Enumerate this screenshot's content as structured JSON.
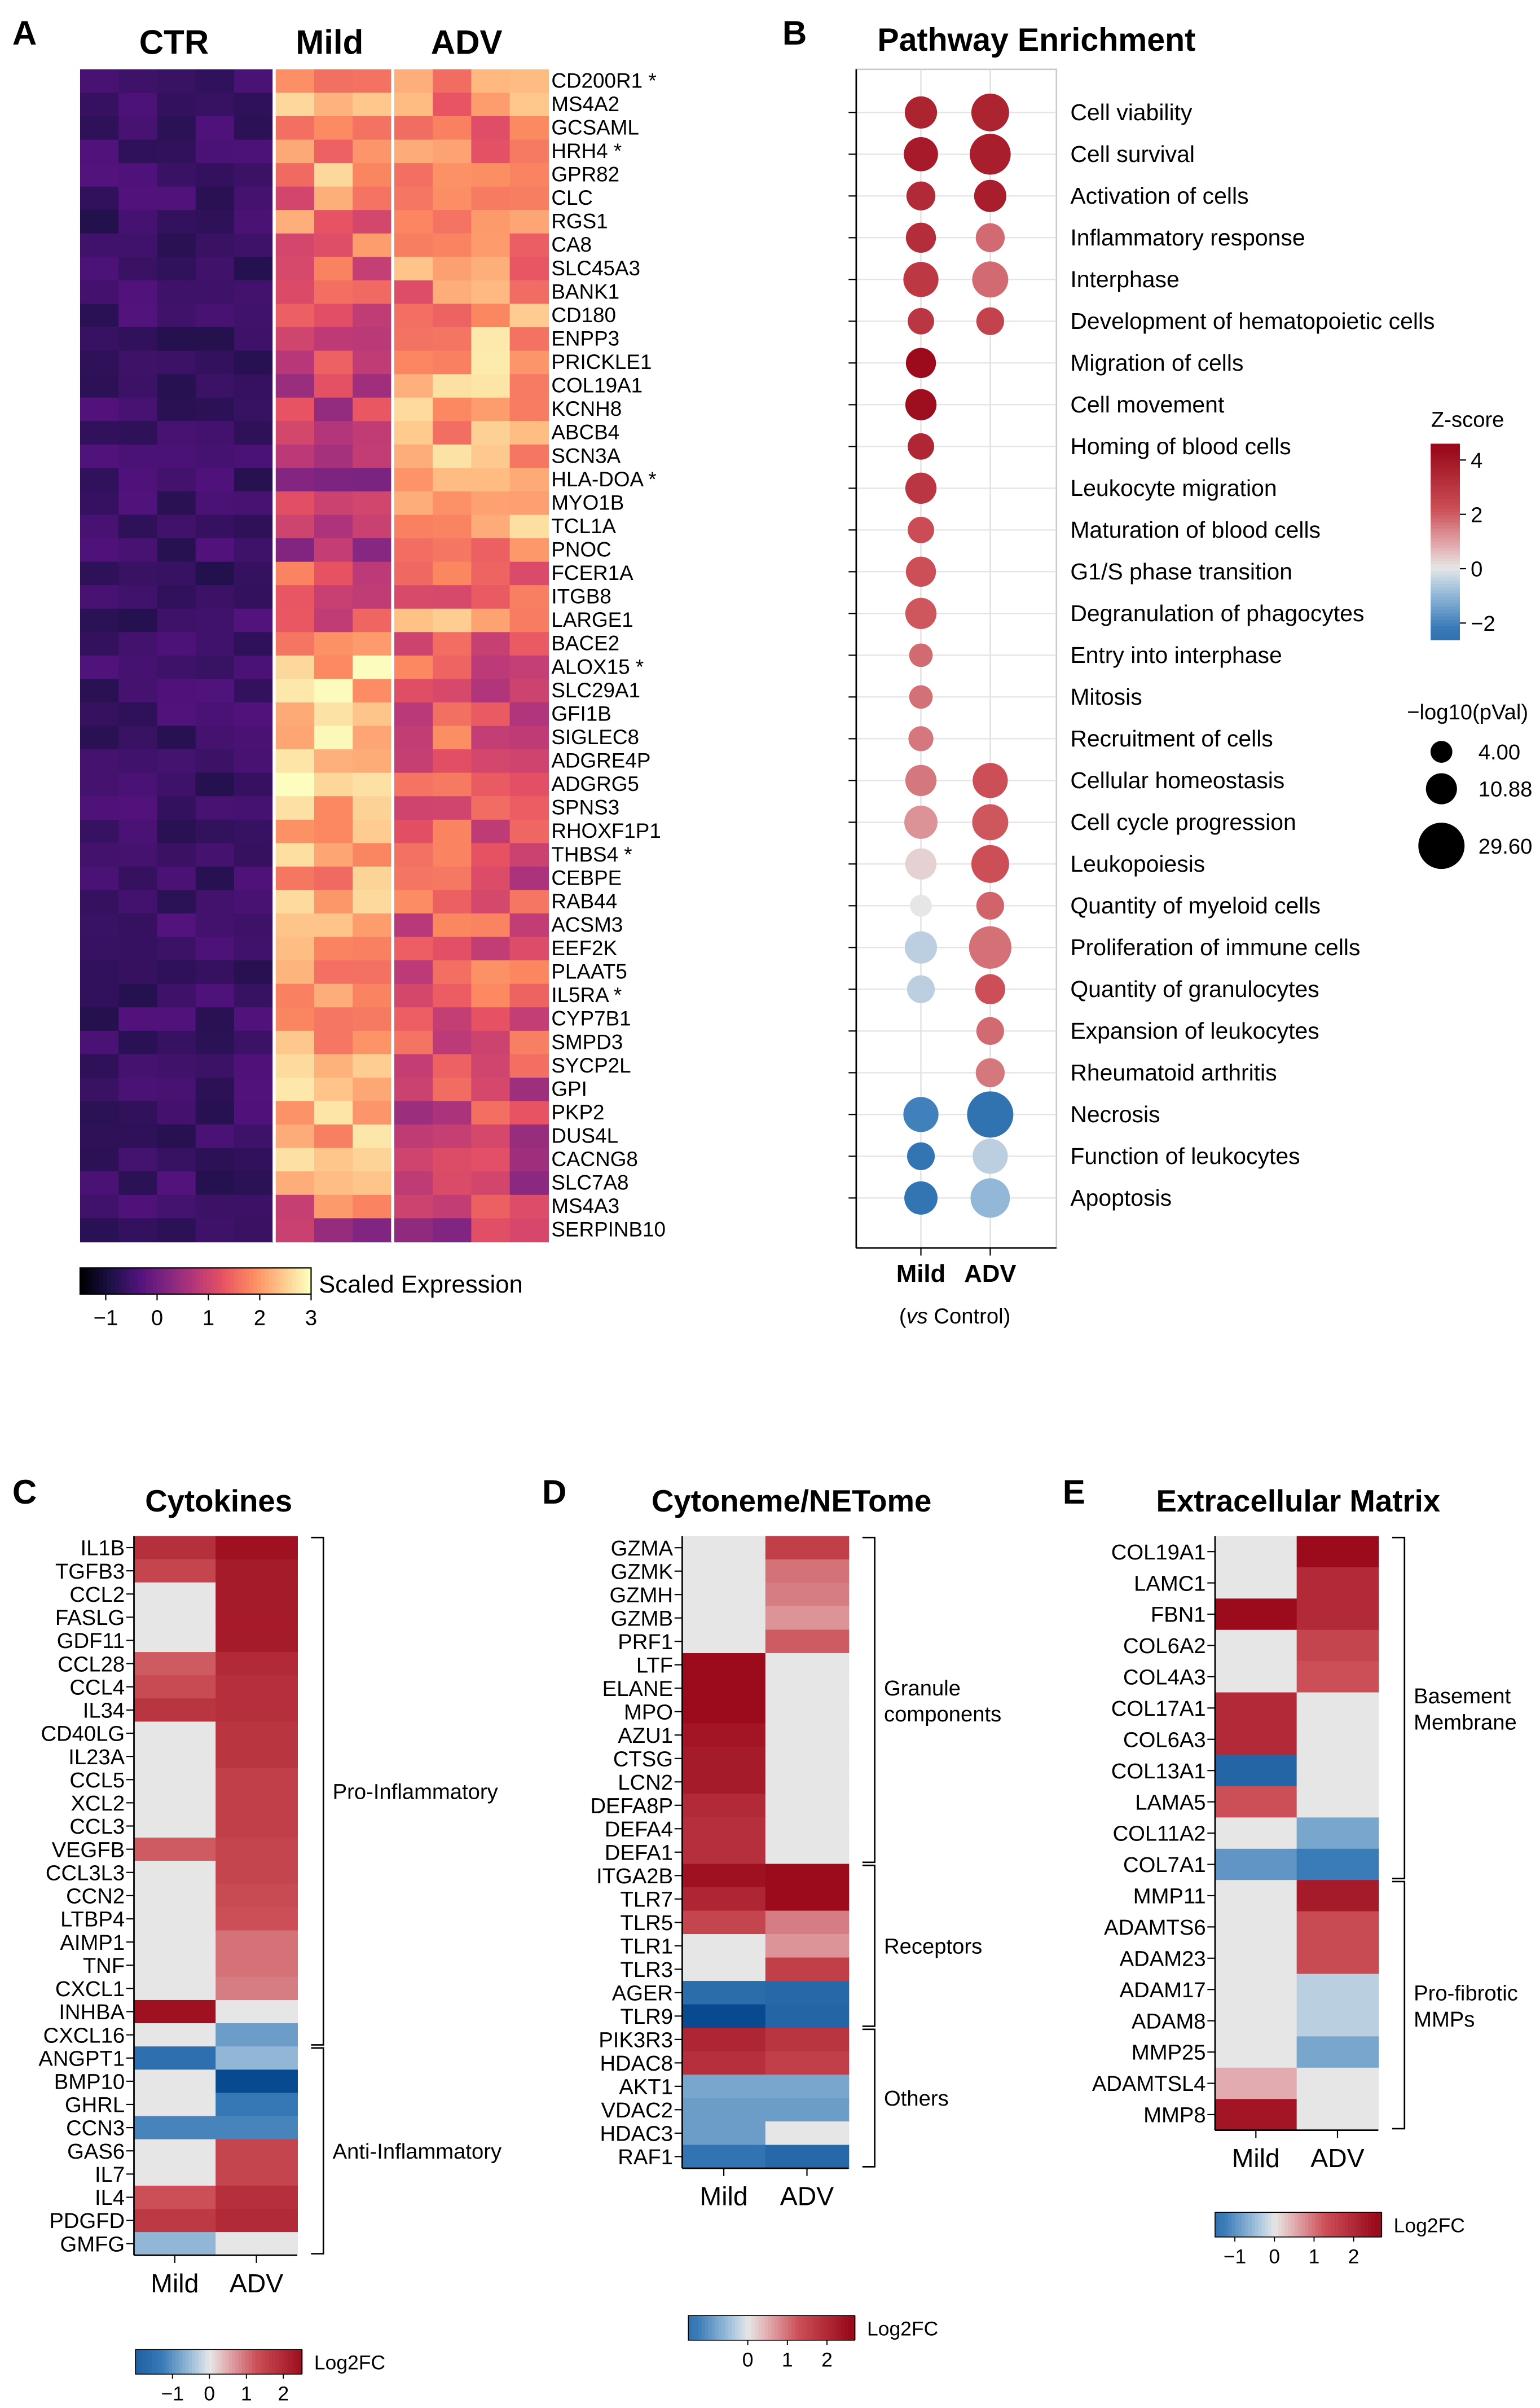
{
  "panel_letters": {
    "a": "A",
    "b": "B",
    "c": "C",
    "d": "D",
    "e": "E"
  },
  "colors": {
    "sat_red": "#9b0b1c",
    "sat_blue": "#084a8f",
    "neutral": "#e6e6e6",
    "heat_low": "#000004",
    "heat_high": "#fcfdbf"
  },
  "chart_data": [
    {
      "type": "heatmap",
      "panel": "A",
      "title": "",
      "group_labels": [
        "CTR",
        "Mild",
        "ADV"
      ],
      "group_sizes": [
        5,
        3,
        4
      ],
      "genes": [
        "CD200R1 *",
        "MS4A2",
        "GCSAML",
        "HRH4 *",
        "GPR82",
        "CLC",
        "RGS1",
        "CA8",
        "SLC45A3",
        "BANK1",
        "CD180",
        "ENPP3",
        "PRICKLE1",
        "COL19A1",
        "KCNH8",
        "ABCB4",
        "SCN3A",
        "HLA-DOA *",
        "MYO1B",
        "TCL1A",
        "PNOC",
        "FCER1A",
        "ITGB8",
        "LARGE1",
        "BACE2",
        "ALOX15 *",
        "SLC29A1",
        "GFI1B",
        "SIGLEC8",
        "ADGRE4P",
        "ADGRG5",
        "SPNS3",
        "RHOXF1P1",
        "THBS4 *",
        "CEBPE",
        "RAB44",
        "ACSM3",
        "EEF2K",
        "PLAAT5",
        "IL5RA *",
        "CYP7B1",
        "SMPD3",
        "SYCP2L",
        "GPI",
        "PKP2",
        "DUS4L",
        "CACNG8",
        "SLC7A8",
        "MS4A3",
        "SERPINB10"
      ],
      "values_mild_mean": [
        1.6,
        2.0,
        1.8,
        2.0,
        2.1,
        1.6,
        1.6,
        1.5,
        1.3,
        1.0,
        1.1,
        1.0,
        0.9,
        0.9,
        0.9,
        0.7,
        0.7,
        0.7,
        0.6,
        0.6,
        0.6,
        1.2,
        1.4,
        1.4,
        2.0,
        2.4,
        2.4,
        2.5,
        2.4,
        2.4,
        2.5,
        2.4,
        2.3,
        2.4,
        2.0,
        2.2,
        2.1,
        2.2,
        2.1,
        2.2,
        2.2,
        2.2,
        2.2,
        2.3,
        2.1,
        2.2,
        2.1,
        2.0,
        1.5,
        0.8
      ],
      "values_adv_mean": [
        2.2,
        1.9,
        1.7,
        1.8,
        1.8,
        1.8,
        1.8,
        1.6,
        1.9,
        1.8,
        2.0,
        2.2,
        2.2,
        2.2,
        2.1,
        2.2,
        2.2,
        2.3,
        2.1,
        2.1,
        2.0,
        1.6,
        1.4,
        2.0,
        1.3,
        1.3,
        1.2,
        1.2,
        1.3,
        1.3,
        1.2,
        1.2,
        1.2,
        1.2,
        1.2,
        1.3,
        1.3,
        1.3,
        1.3,
        1.3,
        1.2,
        1.2,
        1.1,
        1.1,
        1.1,
        0.8,
        0.9,
        0.8,
        0.8,
        0.6
      ],
      "values_ctr_mean": -0.6,
      "colorbar": {
        "label": "Scaled Expression",
        "ticks": [
          "−1",
          "0",
          "1",
          "2",
          "3"
        ],
        "range": [
          -1.5,
          3
        ]
      }
    },
    {
      "type": "dot",
      "panel": "B",
      "title": "Pathway Enrichment",
      "x_categories": [
        "Mild",
        "ADV"
      ],
      "x_subtitle_italic": "vs",
      "x_subtitle_rest": " Control)",
      "x_subtitle_open": "(",
      "pathways": [
        "Cell viability",
        "Cell survival",
        "Activation of cells",
        "Inflammatory response",
        "Interphase",
        "Development of hematopoietic cells",
        "Migration of cells",
        "Cell movement",
        "Homing of blood cells",
        "Leukocyte migration",
        "Maturation of blood cells",
        "G1/S phase transition",
        "Degranulation of phagocytes",
        "Entry into interphase",
        "Mitosis",
        "Recruitment of cells",
        "Cellular homeostasis",
        "Cell cycle progression",
        "Leukopoiesis",
        "Quantity of myeloid cells",
        "Proliferation of immune cells",
        "Quantity of granulocytes",
        "Expansion of leukocytes",
        "Rheumatoid arthritis",
        "Necrosis",
        "Function of leukocytes",
        "Apoptosis"
      ],
      "mild_z": [
        3.6,
        3.9,
        3.4,
        3.3,
        2.9,
        3.0,
        4.4,
        4.3,
        3.5,
        3.0,
        2.3,
        2.2,
        2.1,
        1.8,
        1.7,
        1.6,
        1.6,
        1.2,
        0.3,
        0.0,
        -0.5,
        -0.5,
        null,
        null,
        -2.1,
        -2.5,
        -2.5
      ],
      "mild_p": [
        12,
        14,
        9,
        10,
        15,
        7,
        10,
        11,
        7,
        11,
        7,
        10,
        11,
        5,
        5,
        6,
        11,
        13,
        11,
        4,
        12,
        8,
        null,
        null,
        15,
        8,
        13
      ],
      "adv_z": [
        3.6,
        3.8,
        3.8,
        1.8,
        1.8,
        2.6,
        null,
        null,
        null,
        null,
        null,
        null,
        null,
        null,
        null,
        null,
        2.2,
        2.1,
        2.2,
        1.9,
        1.7,
        2.2,
        1.8,
        1.6,
        -2.6,
        -0.5,
        -1.0
      ],
      "adv_p": [
        18,
        22,
        12,
        9,
        16,
        8,
        null,
        null,
        null,
        null,
        null,
        null,
        null,
        null,
        null,
        null,
        15,
        16,
        18,
        8,
        24,
        10,
        8,
        9,
        29.6,
        15,
        20
      ],
      "legend_z": {
        "title": "Z-score",
        "ticks": [
          "4",
          "2",
          "0",
          "−2"
        ]
      },
      "legend_size": {
        "title": "−log10(pVal)",
        "entries": [
          "4.00",
          "10.88",
          "29.60"
        ]
      }
    },
    {
      "type": "heatmap",
      "panel": "C",
      "title": "Cytokines",
      "columns": [
        "Mild",
        "ADV"
      ],
      "rows": [
        "IL1B",
        "TGFB3",
        "CCL2",
        "FASLG",
        "GDF11",
        "CCL28",
        "CCL4",
        "IL34",
        "CD40LG",
        "IL23A",
        "CCL5",
        "XCL2",
        "CCL3",
        "VEGFB",
        "CCL3L3",
        "CCN2",
        "LTBP4",
        "AIMP1",
        "TNF",
        "CXCL1",
        "INHBA",
        "CXCL16",
        "ANGPT1",
        "BMP10",
        "GHRL",
        "CCN3",
        "GAS6",
        "IL7",
        "IL4",
        "PDGFD",
        "GMFG"
      ],
      "mild": [
        1.9,
        1.5,
        0,
        0,
        0,
        1.2,
        1.4,
        1.8,
        0,
        0,
        0,
        0,
        0,
        1.2,
        0,
        0,
        0,
        0,
        0,
        0,
        2.5,
        0,
        -1.6,
        0,
        0,
        -1.2,
        0,
        0,
        1.3,
        1.7,
        -0.6
      ],
      "adv": [
        2.5,
        2.3,
        2.3,
        2.3,
        2.3,
        2.0,
        1.9,
        1.9,
        1.8,
        1.8,
        1.6,
        1.6,
        1.6,
        1.5,
        1.5,
        1.4,
        1.3,
        1.0,
        1.0,
        0.9,
        0,
        -0.9,
        -0.6,
        -2.6,
        -1.4,
        -1.2,
        1.5,
        1.5,
        1.9,
        2.0,
        0
      ],
      "groups": [
        {
          "label": "Pro-Inflammatory",
          "start": 0,
          "end": 21
        },
        {
          "label": "Anti-Inflammatory",
          "start": 22,
          "end": 30
        }
      ],
      "colorbar": {
        "label": "Log2FC",
        "ticks": [
          "−1",
          "0",
          "1",
          "2"
        ],
        "range": [
          -2,
          2.5
        ]
      }
    },
    {
      "type": "heatmap",
      "panel": "D",
      "title": "Cytoneme/NETome",
      "columns": [
        "Mild",
        "ADV"
      ],
      "rows": [
        "GZMA",
        "GZMK",
        "GZMH",
        "GZMB",
        "PRF1",
        "LTF",
        "ELANE",
        "MPO",
        "AZU1",
        "CTSG",
        "LCN2",
        "DEFA8P",
        "DEFA4",
        "DEFA1",
        "ITGA2B",
        "TLR7",
        "TLR5",
        "TLR1",
        "TLR3",
        "AGER",
        "TLR9",
        "PIK3R3",
        "HDAC8",
        "AKT1",
        "VDAC2",
        "HDAC3",
        "RAF1"
      ],
      "mild": [
        0,
        0,
        0,
        0,
        0,
        2.6,
        2.6,
        2.6,
        2.4,
        2.3,
        2.3,
        2.0,
        1.9,
        1.9,
        2.5,
        2.1,
        1.5,
        0,
        0,
        -1.7,
        -2.6,
        2.1,
        1.9,
        -0.8,
        -0.9,
        -0.9,
        -1.5
      ],
      "adv": [
        1.6,
        1.0,
        0.9,
        0.7,
        1.2,
        0,
        0,
        0,
        0,
        0,
        0,
        0,
        0,
        0,
        2.6,
        2.7,
        0.9,
        0.7,
        1.6,
        -1.8,
        -1.9,
        1.8,
        1.6,
        -0.8,
        -0.9,
        0,
        -1.8
      ],
      "groups": [
        {
          "label": "Granule components",
          "start": 0,
          "end": 13
        },
        {
          "label": "Receptors",
          "start": 14,
          "end": 20
        },
        {
          "label": "Others",
          "start": 21,
          "end": 26
        }
      ],
      "colorbar": {
        "label": "Log2FC",
        "ticks": [
          "0",
          "1",
          "2"
        ],
        "range": [
          -1.5,
          2.7
        ]
      }
    },
    {
      "type": "heatmap",
      "panel": "E",
      "title": "Extracellular Matrix",
      "columns": [
        "Mild",
        "ADV"
      ],
      "rows": [
        "COL19A1",
        "LAMC1",
        "FBN1",
        "COL6A2",
        "COL4A3",
        "COL17A1",
        "COL6A3",
        "COL13A1",
        "LAMA5",
        "COL11A2",
        "COL7A1",
        "MMP11",
        "ADAMTS6",
        "ADAM23",
        "ADAM17",
        "ADAM8",
        "MMP25",
        "ADAMTSL4",
        "MMP8"
      ],
      "mild": [
        0,
        0,
        2.6,
        0,
        0,
        2.0,
        2.0,
        -1.9,
        1.3,
        0,
        -1.0,
        0,
        0,
        0,
        0,
        0,
        0,
        0.5,
        2.4
      ],
      "adv": [
        2.6,
        2.0,
        2.0,
        1.5,
        1.3,
        0,
        0,
        0,
        0,
        -0.8,
        -1.3,
        2.3,
        1.4,
        1.4,
        -0.3,
        -0.3,
        -0.8,
        0,
        0
      ],
      "groups": [
        {
          "label": "Basement Membrane",
          "start": 0,
          "end": 10
        },
        {
          "label": "Pro-fibrotic MMPs",
          "start": 11,
          "end": 18
        }
      ],
      "colorbar": {
        "label": "Log2FC",
        "ticks": [
          "−1",
          "0",
          "1",
          "2"
        ],
        "range": [
          -1.5,
          2.7
        ]
      }
    }
  ]
}
